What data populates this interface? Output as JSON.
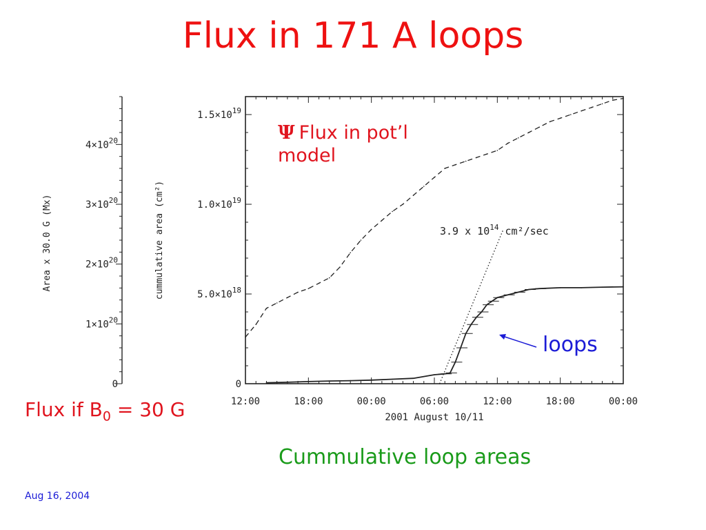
{
  "slide": {
    "title": "Flux in 171 A loops",
    "footer_date": "Aug 16, 2004"
  },
  "annotations": {
    "psi_symbol": "Ψ",
    "psi_label_line1": "Flux in pot’l",
    "psi_label_line2": "model",
    "loops_label": "loops",
    "flux_if_label": "Flux if B",
    "flux_if_subscript": "0",
    "flux_if_value": " = 30 G",
    "caption": "Cummulative loop areas"
  },
  "colors": {
    "title": "#ee1111",
    "annotation_red": "#e0141e",
    "loops_label": "#1b1bd6",
    "caption": "#1a9b1a",
    "footer": "#1b1bd6",
    "plot_ink": "#222222"
  },
  "chart_data": {
    "type": "line",
    "xlabel": "2001 August 10/11",
    "ylabel": "cummulative area (cm²)",
    "y2label": "Area x 30.0 G (Mx)",
    "x_unit": "hours since 2001 Aug 10 12:00",
    "xlim": [
      0,
      36
    ],
    "ylim": [
      0,
      1.6e+19
    ],
    "x_tick_labels": [
      "12:00",
      "18:00",
      "00:00",
      "06:00",
      "12:00",
      "18:00",
      "00:00"
    ],
    "x_tick_values": [
      0,
      6,
      12,
      18,
      24,
      30,
      36
    ],
    "y_tick_labels": [
      "0",
      "5.0×10",
      "1.0×10",
      "1.5×10"
    ],
    "y_tick_exponents": [
      "",
      "18",
      "19",
      "19"
    ],
    "y_tick_values": [
      0,
      5e+18,
      1e+19,
      1.5e+19
    ],
    "y2_tick_labels": [
      "0",
      "1×10",
      "2×10",
      "3×10",
      "4×10"
    ],
    "y2_tick_exponent": "20",
    "y2_tick_values": [
      0,
      1e+20,
      2e+20,
      3e+20,
      4e+20
    ],
    "rate_label": "3.9 x 10",
    "rate_exponent": "14",
    "rate_unit": " cm²/sec",
    "series": [
      {
        "name": "Flux in pot’l model",
        "style": "dashed",
        "x": [
          0,
          1,
          2,
          3,
          4,
          5,
          6,
          7,
          8,
          9,
          10,
          11,
          12,
          13,
          14,
          15,
          16,
          17,
          18,
          19,
          20,
          21,
          22,
          23,
          24,
          25,
          26,
          27,
          28,
          29,
          30,
          31,
          32,
          33,
          34,
          35,
          36
        ],
        "values": [
          2.6e+18,
          3.3e+18,
          4.2e+18,
          4.5e+18,
          4.8e+18,
          5.1e+18,
          5.3e+18,
          5.6e+18,
          5.9e+18,
          6.5e+18,
          7.3e+18,
          8e+18,
          8.6e+18,
          9.1e+18,
          9.6e+18,
          1e+19,
          1.05e+19,
          1.1e+19,
          1.15e+19,
          1.2e+19,
          1.22e+19,
          1.24e+19,
          1.26e+19,
          1.28e+19,
          1.3e+19,
          1.34e+19,
          1.37e+19,
          1.4e+19,
          1.43e+19,
          1.46e+19,
          1.48e+19,
          1.5e+19,
          1.52e+19,
          1.54e+19,
          1.56e+19,
          1.58e+19,
          1.59e+19
        ]
      },
      {
        "name": "loops",
        "style": "solid",
        "x": [
          2,
          4,
          6,
          8,
          10,
          12,
          14,
          16,
          18,
          19,
          19.5,
          20,
          20.5,
          21,
          21.5,
          22,
          22.5,
          23,
          23.5,
          24,
          25,
          26,
          27,
          28,
          30,
          32,
          34,
          36
        ],
        "values": [
          5e+16,
          8e+16,
          1.2e+17,
          1.5e+17,
          1.7e+17,
          2e+17,
          2.5e+17,
          3e+17,
          5e+17,
          5.5e+17,
          6e+17,
          1.2e+18,
          2e+18,
          2.8e+18,
          3.3e+18,
          3.7e+18,
          4e+18,
          4.4e+18,
          4.6e+18,
          4.8e+18,
          4.95e+18,
          5.1e+18,
          5.25e+18,
          5.3e+18,
          5.35e+18,
          5.35e+18,
          5.38e+18,
          5.4e+18
        ]
      },
      {
        "name": "3.9 x 10^14 cm²/sec",
        "style": "dotted",
        "x": [
          18.5,
          24.5
        ],
        "values": [
          0,
          8.5e+18
        ]
      }
    ]
  }
}
